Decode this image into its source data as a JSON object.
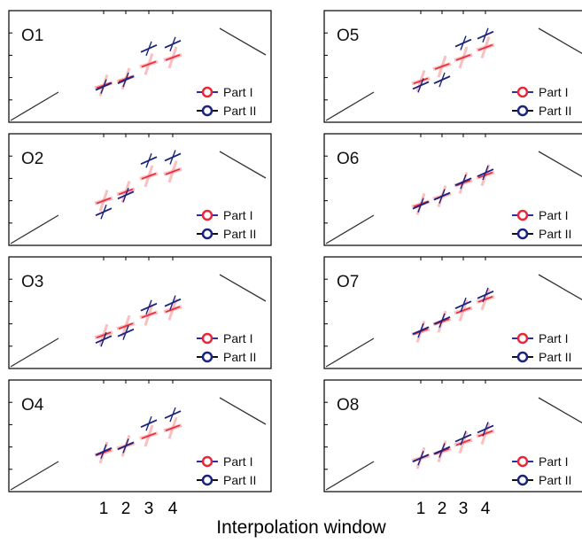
{
  "colors": {
    "part1_marker": "#e8273a",
    "part1_line": "#2b2ea5",
    "part2": "#1a237e",
    "spread": "#f58a8a",
    "axis": "#000000"
  },
  "legend": {
    "part1": "Part I",
    "part2": "Part II"
  },
  "xlabel": "Interpolation window",
  "xticks": [
    "1",
    "2",
    "3",
    "4"
  ],
  "chart_data": [
    {
      "type": "scatter",
      "title": "O1",
      "x": [
        1,
        2,
        3,
        4
      ],
      "series": [
        {
          "name": "Part I",
          "values": [
            0.33,
            0.39,
            0.52,
            0.58
          ]
        },
        {
          "name": "Part II",
          "values": [
            0.32,
            0.38,
            0.66,
            0.7
          ]
        }
      ]
    },
    {
      "type": "scatter",
      "title": "O2",
      "x": [
        1,
        2,
        3,
        4
      ],
      "series": [
        {
          "name": "Part I",
          "values": [
            0.4,
            0.48,
            0.62,
            0.66
          ]
        },
        {
          "name": "Part II",
          "values": [
            0.3,
            0.45,
            0.76,
            0.79
          ]
        }
      ]
    },
    {
      "type": "scatter",
      "title": "O3",
      "x": [
        1,
        2,
        3,
        4
      ],
      "series": [
        {
          "name": "Part I",
          "values": [
            0.3,
            0.38,
            0.48,
            0.53
          ]
        },
        {
          "name": "Part II",
          "values": [
            0.26,
            0.32,
            0.55,
            0.59
          ]
        }
      ]
    },
    {
      "type": "scatter",
      "title": "O4",
      "x": [
        1,
        2,
        3,
        4
      ],
      "series": [
        {
          "name": "Part I",
          "values": [
            0.35,
            0.41,
            0.5,
            0.57
          ]
        },
        {
          "name": "Part II",
          "values": [
            0.36,
            0.41,
            0.61,
            0.69
          ]
        }
      ]
    },
    {
      "type": "scatter",
      "title": "O5",
      "x": [
        1,
        2,
        3,
        4
      ],
      "series": [
        {
          "name": "Part I",
          "values": [
            0.37,
            0.5,
            0.58,
            0.67
          ]
        },
        {
          "name": "Part II",
          "values": [
            0.33,
            0.38,
            0.71,
            0.78
          ]
        }
      ]
    },
    {
      "type": "scatter",
      "title": "O6",
      "x": [
        1,
        2,
        3,
        4
      ],
      "series": [
        {
          "name": "Part I",
          "values": [
            0.37,
            0.44,
            0.56,
            0.63
          ]
        },
        {
          "name": "Part II",
          "values": [
            0.36,
            0.44,
            0.57,
            0.65
          ]
        }
      ]
    },
    {
      "type": "scatter",
      "title": "O7",
      "x": [
        1,
        2,
        3,
        4
      ],
      "series": [
        {
          "name": "Part I",
          "values": [
            0.33,
            0.42,
            0.52,
            0.62
          ]
        },
        {
          "name": "Part II",
          "values": [
            0.34,
            0.43,
            0.57,
            0.66
          ]
        }
      ]
    },
    {
      "type": "scatter",
      "title": "O8",
      "x": [
        1,
        2,
        3,
        4
      ],
      "series": [
        {
          "name": "Part I",
          "values": [
            0.3,
            0.36,
            0.44,
            0.52
          ]
        },
        {
          "name": "Part II",
          "values": [
            0.3,
            0.37,
            0.48,
            0.56
          ]
        }
      ]
    }
  ]
}
